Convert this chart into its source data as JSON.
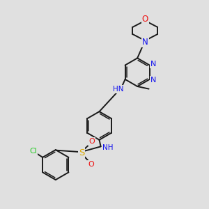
{
  "background_color": "#e0e0e0",
  "bond_color": "#1a1a1a",
  "N_color": "#1010ee",
  "O_color": "#ee1010",
  "S_color": "#ddaa00",
  "Cl_color": "#22cc22",
  "figsize": [
    3.0,
    3.0
  ],
  "dpi": 100,
  "xlim": [
    0,
    10
  ],
  "ylim": [
    0,
    10
  ]
}
